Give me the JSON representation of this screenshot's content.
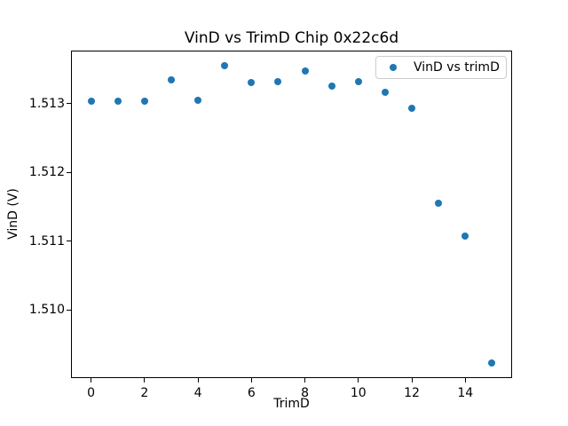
{
  "chart_data": {
    "type": "scatter",
    "title": "VinD vs TrimD Chip 0x22c6d",
    "xlabel": "TrimD",
    "ylabel": "VinD (V)",
    "grid": false,
    "legend_position": "upper right",
    "marker_color": "#1f77b4",
    "x": [
      0,
      1,
      2,
      3,
      4,
      5,
      6,
      7,
      8,
      9,
      10,
      11,
      12,
      13,
      14,
      15
    ],
    "series": [
      {
        "name": "VinD vs trimD",
        "values": [
          1.51303,
          1.51303,
          1.51303,
          1.51334,
          1.51305,
          1.51355,
          1.51331,
          1.51332,
          1.51347,
          1.51325,
          1.51332,
          1.51316,
          1.51293,
          1.51155,
          1.51108,
          1.50923
        ]
      }
    ],
    "xlim": [
      -0.75,
      15.75
    ],
    "ylim": [
      1.50901,
      1.51377
    ],
    "xticks": [
      {
        "value": 0,
        "label": "0"
      },
      {
        "value": 2,
        "label": "2"
      },
      {
        "value": 4,
        "label": "4"
      },
      {
        "value": 6,
        "label": "6"
      },
      {
        "value": 8,
        "label": "8"
      },
      {
        "value": 10,
        "label": "10"
      },
      {
        "value": 12,
        "label": "12"
      },
      {
        "value": 14,
        "label": "14"
      }
    ],
    "yticks": [
      {
        "value": 1.51,
        "label": "1.510"
      },
      {
        "value": 1.511,
        "label": "1.511"
      },
      {
        "value": 1.512,
        "label": "1.512"
      },
      {
        "value": 1.513,
        "label": "1.513"
      }
    ]
  }
}
